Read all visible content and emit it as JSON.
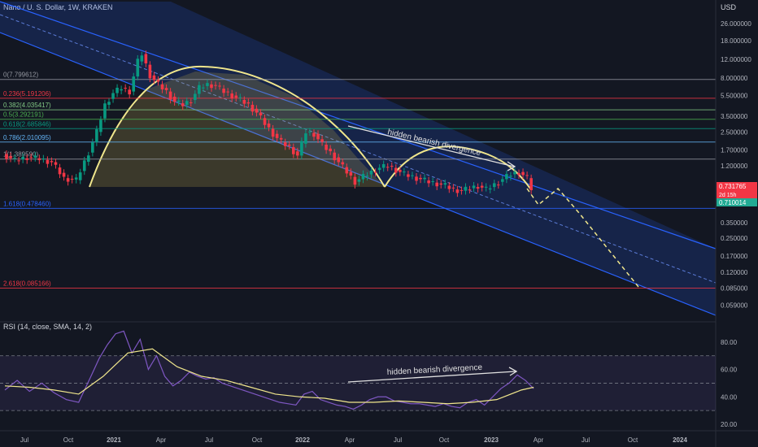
{
  "header": {
    "title": "Nano / U. S. Dollar, 1W, KRAKEN",
    "currency": "USD"
  },
  "chart_data": {
    "type": "candlestick",
    "price_axis": {
      "scale": "log",
      "range": [
        0.044,
        34
      ],
      "ticks": [
        "26.000000",
        "18.000000",
        "12.000000",
        "8.000000",
        "5.500000",
        "3.500000",
        "2.500000",
        "1.700000",
        "1.200000",
        "0.800000",
        "0.350000",
        "0.250000",
        "0.170000",
        "0.120000",
        "0.085000",
        "0.059000"
      ]
    },
    "time_axis": {
      "ticks": [
        "Jul",
        "Oct",
        "2021",
        "Apr",
        "Jul",
        "Oct",
        "2022",
        "Apr",
        "Jul",
        "Oct",
        "2023",
        "Apr",
        "Jul",
        "Oct",
        "2024"
      ]
    },
    "fib_levels": [
      {
        "label": "0(7.799612)",
        "value": 7.799612,
        "color": "#9598a1"
      },
      {
        "label": "0.236(5.191206)",
        "value": 5.191206,
        "color": "#f23645"
      },
      {
        "label": "0.382(4.035417)",
        "value": 4.035417,
        "color": "#81c784"
      },
      {
        "label": "0.5(3.292191)",
        "value": 3.292191,
        "color": "#4caf50"
      },
      {
        "label": "0.618(2.685846)",
        "value": 2.685846,
        "color": "#089981"
      },
      {
        "label": "0.786(2.010095)",
        "value": 2.010095,
        "color": "#64b5f6"
      },
      {
        "label": "1(1.389590)",
        "value": 1.38959,
        "color": "#9598a1"
      },
      {
        "label": "1.618(0.478460)",
        "value": 0.47846,
        "color": "#2962ff"
      },
      {
        "label": "2.618(0.085166)",
        "value": 0.085166,
        "color": "#f23645"
      }
    ],
    "price_badges": [
      {
        "value": "0.731765",
        "sub": "2d 15h",
        "color": "#f23645"
      },
      {
        "value": "0.710014",
        "color": "#22ab94"
      }
    ],
    "weekly_close_path": [
      [
        0,
        1.55
      ],
      [
        3,
        1.35
      ],
      [
        6,
        1.45
      ],
      [
        9,
        1.4
      ],
      [
        12,
        1.3
      ],
      [
        15,
        0.92
      ],
      [
        18,
        0.88
      ],
      [
        21,
        1.6
      ],
      [
        23,
        2.5
      ],
      [
        25,
        4.5
      ],
      [
        27,
        5.8
      ],
      [
        29,
        6.5
      ],
      [
        31,
        6.0
      ],
      [
        33,
        11.5
      ],
      [
        34,
        13.5
      ],
      [
        36,
        8.5
      ],
      [
        38,
        7.0
      ],
      [
        40,
        6.0
      ],
      [
        42,
        4.8
      ],
      [
        44,
        4.5
      ],
      [
        46,
        5.0
      ],
      [
        48,
        6.5
      ],
      [
        50,
        7.0
      ],
      [
        52,
        6.8
      ],
      [
        54,
        6.0
      ],
      [
        56,
        5.5
      ],
      [
        58,
        5.0
      ],
      [
        60,
        4.5
      ],
      [
        62,
        3.8
      ],
      [
        64,
        3.0
      ],
      [
        66,
        2.4
      ],
      [
        68,
        2.0
      ],
      [
        70,
        1.8
      ],
      [
        72,
        1.5
      ],
      [
        74,
        2.5
      ],
      [
        76,
        2.4
      ],
      [
        78,
        1.9
      ],
      [
        80,
        1.6
      ],
      [
        82,
        1.3
      ],
      [
        84,
        1.05
      ],
      [
        86,
        0.85
      ],
      [
        88,
        0.95
      ],
      [
        90,
        1.05
      ],
      [
        92,
        1.15
      ],
      [
        94,
        1.2
      ],
      [
        96,
        1.1
      ],
      [
        98,
        1.0
      ],
      [
        100,
        0.95
      ],
      [
        102,
        0.9
      ],
      [
        104,
        0.85
      ],
      [
        106,
        0.82
      ],
      [
        108,
        0.78
      ],
      [
        110,
        0.72
      ],
      [
        112,
        0.7
      ],
      [
        114,
        0.74
      ],
      [
        116,
        0.78
      ],
      [
        118,
        0.72
      ],
      [
        120,
        0.8
      ],
      [
        122,
        0.9
      ],
      [
        124,
        1.0
      ],
      [
        126,
        1.05
      ],
      [
        128,
        0.92
      ],
      [
        129,
        0.73
      ]
    ],
    "annotations": [
      "hidden bearish divergence",
      "hidden bearish divergence"
    ],
    "rsi": {
      "title": "RSI (14, close, SMA, 14, 2)",
      "range": [
        20,
        90
      ],
      "ticks": [
        "80.00",
        "60.00",
        "40.00",
        "20.00"
      ],
      "bands": [
        70,
        50,
        30
      ],
      "values": [
        [
          0,
          45
        ],
        [
          3,
          52
        ],
        [
          6,
          44
        ],
        [
          9,
          50
        ],
        [
          12,
          43
        ],
        [
          15,
          38
        ],
        [
          18,
          36
        ],
        [
          21,
          55
        ],
        [
          23,
          68
        ],
        [
          25,
          78
        ],
        [
          27,
          86
        ],
        [
          29,
          88
        ],
        [
          31,
          72
        ],
        [
          33,
          82
        ],
        [
          35,
          60
        ],
        [
          37,
          70
        ],
        [
          39,
          55
        ],
        [
          41,
          48
        ],
        [
          43,
          52
        ],
        [
          45,
          58
        ],
        [
          47,
          55
        ],
        [
          49,
          53
        ],
        [
          51,
          54
        ],
        [
          53,
          50
        ],
        [
          55,
          48
        ],
        [
          57,
          46
        ],
        [
          59,
          44
        ],
        [
          61,
          42
        ],
        [
          63,
          40
        ],
        [
          65,
          38
        ],
        [
          67,
          36
        ],
        [
          69,
          35
        ],
        [
          71,
          34
        ],
        [
          73,
          42
        ],
        [
          75,
          44
        ],
        [
          77,
          38
        ],
        [
          79,
          36
        ],
        [
          81,
          34
        ],
        [
          83,
          33
        ],
        [
          85,
          31
        ],
        [
          87,
          34
        ],
        [
          89,
          38
        ],
        [
          91,
          40
        ],
        [
          93,
          40
        ],
        [
          95,
          37
        ],
        [
          97,
          36
        ],
        [
          99,
          35
        ],
        [
          101,
          35
        ],
        [
          103,
          34
        ],
        [
          105,
          33
        ],
        [
          107,
          35
        ],
        [
          109,
          33
        ],
        [
          111,
          32
        ],
        [
          113,
          36
        ],
        [
          115,
          38
        ],
        [
          117,
          34
        ],
        [
          119,
          40
        ],
        [
          121,
          46
        ],
        [
          123,
          50
        ],
        [
          125,
          56
        ],
        [
          127,
          52
        ],
        [
          129,
          46
        ]
      ],
      "sma": [
        [
          0,
          48
        ],
        [
          6,
          47
        ],
        [
          12,
          45
        ],
        [
          18,
          42
        ],
        [
          24,
          55
        ],
        [
          30,
          72
        ],
        [
          36,
          75
        ],
        [
          42,
          62
        ],
        [
          48,
          55
        ],
        [
          54,
          52
        ],
        [
          60,
          47
        ],
        [
          66,
          42
        ],
        [
          72,
          40
        ],
        [
          78,
          39
        ],
        [
          84,
          36
        ],
        [
          90,
          36
        ],
        [
          96,
          37
        ],
        [
          102,
          36
        ],
        [
          108,
          35
        ],
        [
          114,
          36
        ],
        [
          120,
          38
        ],
        [
          126,
          45
        ],
        [
          129,
          47
        ]
      ]
    }
  }
}
